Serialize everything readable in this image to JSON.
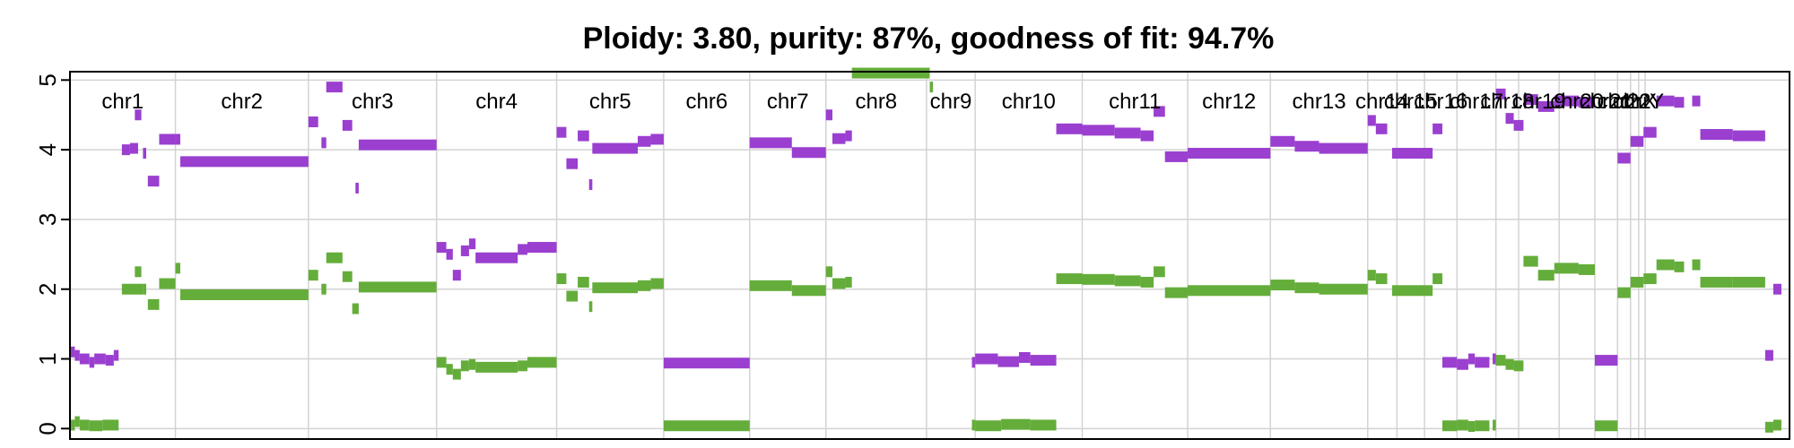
{
  "chart_data": {
    "type": "scatter",
    "title": "Ploidy: 3.80, purity: 87%, goodness of fit: 94.7%",
    "xlabel": "",
    "ylabel": "",
    "ylim": [
      -0.15,
      5.12
    ],
    "yticks": [
      "0",
      "1",
      "2",
      "3",
      "4",
      "5"
    ],
    "grid": true,
    "legend": "none",
    "colors": {
      "major": "#9a3fd0",
      "minor": "#64ad3a",
      "grid": "#d3d3d3",
      "axis": "#000000"
    },
    "chromosome_bounds": [
      0,
      0.065,
      0.147,
      0.226,
      0.3,
      0.366,
      0.419,
      0.466,
      0.528,
      0.558,
      0.624,
      0.689,
      0.74,
      0.8,
      0.818,
      0.835,
      0.855,
      0.879,
      0.893,
      0.918,
      0.94,
      0.954,
      0.962,
      0.967,
      0.971
    ],
    "chromosomes": [
      "chr1",
      "chr2",
      "chr3",
      "chr4",
      "chr5",
      "chr6",
      "chr7",
      "chr8",
      "chr9",
      "chr10",
      "chr11",
      "chr12",
      "chr13",
      "chr14",
      "chr15",
      "chr16",
      "chr17",
      "chr18",
      "chr19",
      "chr20",
      "chr21",
      "chr22",
      "chrX",
      "chrY"
    ],
    "series": [
      {
        "name": "",
        "values": [
          [
            0.0,
            0.003,
            1.1
          ],
          [
            0.003,
            0.006,
            1.05
          ],
          [
            0.006,
            0.012,
            1.0
          ],
          [
            0.012,
            0.015,
            0.95
          ],
          [
            0.015,
            0.022,
            1.0
          ],
          [
            0.022,
            0.027,
            0.98
          ],
          [
            0.027,
            0.03,
            1.05
          ],
          [
            0.032,
            0.037,
            4.0
          ],
          [
            0.037,
            0.042,
            4.02
          ],
          [
            0.04,
            0.044,
            4.5
          ],
          [
            0.045,
            0.047,
            3.95
          ],
          [
            0.048,
            0.055,
            3.55
          ],
          [
            0.055,
            0.065,
            4.15
          ],
          [
            0.065,
            0.068,
            4.15
          ],
          [
            0.068,
            0.147,
            3.83
          ],
          [
            0.147,
            0.153,
            4.4
          ],
          [
            0.155,
            0.158,
            4.1
          ],
          [
            0.158,
            0.168,
            4.9
          ],
          [
            0.168,
            0.174,
            4.35
          ],
          [
            0.176,
            0.178,
            3.45
          ],
          [
            0.178,
            0.226,
            4.07
          ],
          [
            0.226,
            0.232,
            2.6
          ],
          [
            0.232,
            0.236,
            2.5
          ],
          [
            0.236,
            0.241,
            2.2
          ],
          [
            0.241,
            0.246,
            2.55
          ],
          [
            0.246,
            0.25,
            2.65
          ],
          [
            0.25,
            0.276,
            2.45
          ],
          [
            0.276,
            0.282,
            2.57
          ],
          [
            0.282,
            0.3,
            2.6
          ],
          [
            0.3,
            0.306,
            4.25
          ],
          [
            0.306,
            0.313,
            3.8
          ],
          [
            0.313,
            0.32,
            4.2
          ],
          [
            0.32,
            0.322,
            3.5
          ],
          [
            0.322,
            0.35,
            4.02
          ],
          [
            0.35,
            0.358,
            4.12
          ],
          [
            0.358,
            0.366,
            4.15
          ],
          [
            0.366,
            0.419,
            0.94
          ],
          [
            0.419,
            0.445,
            4.1
          ],
          [
            0.445,
            0.466,
            3.96
          ],
          [
            0.466,
            0.47,
            4.5
          ],
          [
            0.47,
            0.478,
            4.16
          ],
          [
            0.478,
            0.482,
            4.2
          ],
          [
            0.556,
            0.558,
            0.95
          ],
          [
            0.558,
            0.572,
            1.0
          ],
          [
            0.572,
            0.585,
            0.96
          ],
          [
            0.585,
            0.592,
            1.02
          ],
          [
            0.592,
            0.608,
            0.98
          ],
          [
            0.608,
            0.624,
            4.3
          ],
          [
            0.624,
            0.644,
            4.28
          ],
          [
            0.644,
            0.66,
            4.24
          ],
          [
            0.66,
            0.668,
            4.2
          ],
          [
            0.668,
            0.675,
            4.55
          ],
          [
            0.675,
            0.689,
            3.9
          ],
          [
            0.689,
            0.74,
            3.95
          ],
          [
            0.74,
            0.755,
            4.12
          ],
          [
            0.755,
            0.77,
            4.05
          ],
          [
            0.77,
            0.8,
            4.02
          ],
          [
            0.8,
            0.805,
            4.42
          ],
          [
            0.805,
            0.812,
            4.3
          ],
          [
            0.815,
            0.84,
            3.95
          ],
          [
            0.84,
            0.846,
            4.3
          ],
          [
            0.846,
            0.855,
            0.95
          ],
          [
            0.855,
            0.862,
            0.92
          ],
          [
            0.862,
            0.866,
            1.0
          ],
          [
            0.866,
            0.875,
            0.95
          ],
          [
            0.877,
            0.879,
            1.0
          ],
          [
            0.879,
            0.885,
            4.8
          ],
          [
            0.885,
            0.89,
            4.45
          ],
          [
            0.89,
            0.896,
            4.35
          ],
          [
            0.896,
            0.905,
            4.72
          ],
          [
            0.905,
            0.915,
            4.62
          ],
          [
            0.915,
            0.93,
            4.7
          ],
          [
            0.93,
            0.94,
            4.68
          ],
          [
            0.94,
            0.954,
            0.98
          ],
          [
            0.954,
            0.962,
            3.88
          ],
          [
            0.962,
            0.97,
            4.12
          ],
          [
            0.97,
            0.978,
            4.25
          ],
          [
            0.978,
            0.989,
            4.7
          ],
          [
            0.989,
            0.995,
            4.68
          ],
          [
            1.0,
            1.005,
            4.7
          ],
          [
            1.005,
            1.025,
            4.22
          ],
          [
            1.025,
            1.045,
            4.2
          ],
          [
            1.045,
            1.05,
            1.05
          ],
          [
            1.05,
            1.055,
            2.0
          ]
        ]
      },
      {
        "name": "",
        "values": [
          [
            0.0,
            0.003,
            0.05
          ],
          [
            0.003,
            0.006,
            0.1
          ],
          [
            0.006,
            0.012,
            0.05
          ],
          [
            0.012,
            0.02,
            0.04
          ],
          [
            0.02,
            0.03,
            0.05
          ],
          [
            0.032,
            0.045,
            2.0
          ],
          [
            0.04,
            0.044,
            2.25
          ],
          [
            0.045,
            0.047,
            2.0
          ],
          [
            0.048,
            0.055,
            1.78
          ],
          [
            0.055,
            0.065,
            2.08
          ],
          [
            0.065,
            0.068,
            2.3
          ],
          [
            0.068,
            0.147,
            1.92
          ],
          [
            0.147,
            0.153,
            2.2
          ],
          [
            0.155,
            0.158,
            2.0
          ],
          [
            0.158,
            0.168,
            2.45
          ],
          [
            0.168,
            0.174,
            2.18
          ],
          [
            0.174,
            0.178,
            1.72
          ],
          [
            0.178,
            0.226,
            2.03
          ],
          [
            0.226,
            0.232,
            0.95
          ],
          [
            0.232,
            0.236,
            0.85
          ],
          [
            0.236,
            0.241,
            0.78
          ],
          [
            0.241,
            0.246,
            0.9
          ],
          [
            0.246,
            0.25,
            0.92
          ],
          [
            0.25,
            0.276,
            0.88
          ],
          [
            0.276,
            0.282,
            0.9
          ],
          [
            0.282,
            0.3,
            0.95
          ],
          [
            0.3,
            0.306,
            2.15
          ],
          [
            0.306,
            0.313,
            1.9
          ],
          [
            0.313,
            0.32,
            2.1
          ],
          [
            0.32,
            0.322,
            1.75
          ],
          [
            0.322,
            0.35,
            2.02
          ],
          [
            0.35,
            0.358,
            2.05
          ],
          [
            0.358,
            0.366,
            2.08
          ],
          [
            0.366,
            0.419,
            0.04
          ],
          [
            0.419,
            0.445,
            2.05
          ],
          [
            0.445,
            0.466,
            1.98
          ],
          [
            0.466,
            0.47,
            2.25
          ],
          [
            0.47,
            0.478,
            2.08
          ],
          [
            0.478,
            0.482,
            2.1
          ],
          [
            0.482,
            0.53,
            5.1
          ],
          [
            0.53,
            0.532,
            4.9
          ],
          [
            0.556,
            0.558,
            0.05
          ],
          [
            0.558,
            0.574,
            0.04
          ],
          [
            0.574,
            0.592,
            0.06
          ],
          [
            0.592,
            0.608,
            0.05
          ],
          [
            0.608,
            0.624,
            2.15
          ],
          [
            0.624,
            0.644,
            2.14
          ],
          [
            0.644,
            0.66,
            2.12
          ],
          [
            0.66,
            0.668,
            2.1
          ],
          [
            0.668,
            0.675,
            2.25
          ],
          [
            0.675,
            0.689,
            1.95
          ],
          [
            0.689,
            0.74,
            1.98
          ],
          [
            0.74,
            0.755,
            2.06
          ],
          [
            0.755,
            0.77,
            2.02
          ],
          [
            0.77,
            0.8,
            2.0
          ],
          [
            0.8,
            0.805,
            2.2
          ],
          [
            0.805,
            0.812,
            2.15
          ],
          [
            0.815,
            0.84,
            1.98
          ],
          [
            0.84,
            0.846,
            2.15
          ],
          [
            0.846,
            0.855,
            0.04
          ],
          [
            0.855,
            0.862,
            0.05
          ],
          [
            0.862,
            0.866,
            0.03
          ],
          [
            0.866,
            0.875,
            0.04
          ],
          [
            0.877,
            0.879,
            0.05
          ],
          [
            0.879,
            0.885,
            0.98
          ],
          [
            0.885,
            0.89,
            0.92
          ],
          [
            0.89,
            0.896,
            0.9
          ],
          [
            0.896,
            0.905,
            2.4
          ],
          [
            0.905,
            0.915,
            2.2
          ],
          [
            0.915,
            0.93,
            2.3
          ],
          [
            0.93,
            0.94,
            2.28
          ],
          [
            0.94,
            0.954,
            0.04
          ],
          [
            0.954,
            0.962,
            1.95
          ],
          [
            0.962,
            0.97,
            2.1
          ],
          [
            0.97,
            0.978,
            2.15
          ],
          [
            0.978,
            0.989,
            2.35
          ],
          [
            0.989,
            0.995,
            2.32
          ],
          [
            1.0,
            1.005,
            2.35
          ],
          [
            1.005,
            1.025,
            2.1
          ],
          [
            1.025,
            1.045,
            2.1
          ],
          [
            1.045,
            1.05,
            0.02
          ],
          [
            1.05,
            1.055,
            0.05
          ]
        ]
      }
    ]
  }
}
